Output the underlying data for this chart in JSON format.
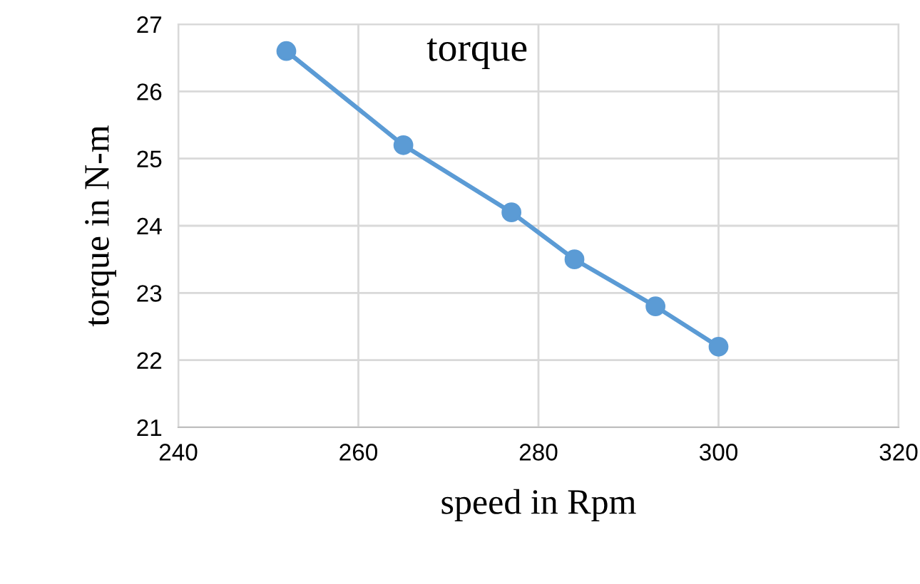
{
  "chart_data": {
    "type": "line",
    "title": "torque",
    "xlabel": "speed in Rpm",
    "ylabel": "torque in N-m",
    "x": [
      252,
      265,
      277,
      284,
      293,
      300
    ],
    "series": [
      {
        "color": "#5b9bd5",
        "values": [
          26.6,
          25.2,
          24.2,
          23.5,
          22.8,
          22.2
        ]
      }
    ],
    "xlim": [
      240,
      320
    ],
    "xticks": [
      240,
      260,
      280,
      300,
      320
    ],
    "ylim": [
      21,
      27
    ],
    "yticks": [
      21,
      22,
      23,
      24,
      25,
      26,
      27
    ],
    "grid": true,
    "marker": "circle",
    "line_style": "solid",
    "legend": false
  }
}
